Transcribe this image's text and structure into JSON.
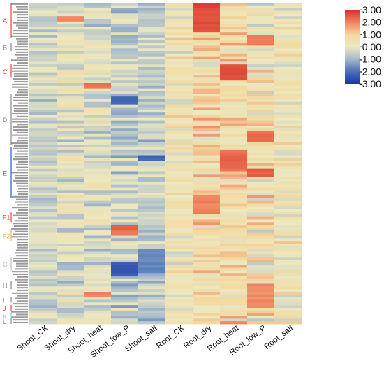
{
  "chart_data": {
    "type": "heatmap",
    "title": "",
    "xlabel": "",
    "ylabel": "",
    "columns": [
      "Shoot_CK",
      "Shoot_dry",
      "Shoot_heat",
      "Shoot_low_P",
      "Shoot_salt",
      "Root_CK",
      "Root_dry",
      "Root_heat",
      "Root_low_P",
      "Root_salt"
    ],
    "row_count": 120,
    "row_labels_legible": false,
    "groups": [
      {
        "label": "A",
        "color": "#e8433a",
        "rows": [
          0,
          12
        ]
      },
      {
        "label": "B",
        "color": "#888888",
        "rows": [
          15,
          17
        ]
      },
      {
        "label": "C",
        "color": "#e8433a",
        "rows": [
          23,
          27
        ]
      },
      {
        "label": "D",
        "color": "#888888",
        "rows": [
          34,
          52
        ]
      },
      {
        "label": "E",
        "color": "#2c58c8",
        "rows": [
          54,
          72
        ]
      },
      {
        "label": "F1",
        "color": "#e8433a",
        "rows": [
          78,
          81
        ]
      },
      {
        "label": "F2",
        "color": "#f0b45a",
        "rows": [
          85,
          88
        ]
      },
      {
        "label": "G",
        "color": "#bbbbbb",
        "rows": [
          95,
          99
        ]
      },
      {
        "label": "H",
        "color": "#888888",
        "rows": [
          104,
          106
        ]
      },
      {
        "label": "I",
        "color": "#888888",
        "rows": [
          110,
          111
        ]
      },
      {
        "label": "J",
        "color": "#e8433a",
        "rows": [
          113,
          114
        ]
      },
      {
        "label": "K",
        "color": "#7ad0d8",
        "rows": [
          116,
          117
        ]
      },
      {
        "label": "L",
        "color": "#888888",
        "rows": [
          118,
          119
        ]
      }
    ],
    "colorbar": {
      "range": [
        -3,
        3
      ],
      "ticks": [
        "3.00",
        "2.00",
        "1.00",
        "0.00",
        "-1.00",
        "-2.00",
        "-3.00"
      ],
      "colors": [
        "#d73027",
        "#f07f5c",
        "#f3d9a0",
        "#ece8c0",
        "#a9bccb",
        "#4b72b5",
        "#1b35a8"
      ]
    },
    "column_profiles": [
      {
        "name": "Shoot_CK",
        "mean": -0.45,
        "spread": 0.55
      },
      {
        "name": "Shoot_dry",
        "mean": -0.2,
        "spread": 0.8
      },
      {
        "name": "Shoot_heat",
        "mean": -0.3,
        "spread": 0.75
      },
      {
        "name": "Shoot_low_P",
        "mean": -0.55,
        "spread": 0.8
      },
      {
        "name": "Shoot_salt",
        "mean": -0.6,
        "spread": 0.6
      },
      {
        "name": "Root_CK",
        "mean": 0.35,
        "spread": 0.7
      },
      {
        "name": "Root_dry",
        "mean": 0.7,
        "spread": 0.9
      },
      {
        "name": "Root_heat",
        "mean": 0.75,
        "spread": 0.9
      },
      {
        "name": "Root_low_P",
        "mean": 0.45,
        "spread": 1.0
      },
      {
        "name": "Root_salt",
        "mean": 0.3,
        "spread": 0.7
      }
    ],
    "highlights": [
      {
        "column": "Root_dry",
        "rows": [
          0,
          10
        ],
        "value": 2.7
      },
      {
        "column": "Root_heat",
        "rows": [
          23,
          28
        ],
        "value": 2.5
      },
      {
        "column": "Root_heat",
        "rows": [
          55,
          62
        ],
        "value": 2.3
      },
      {
        "column": "Root_low_P",
        "rows": [
          12,
          15
        ],
        "value": 2.0
      },
      {
        "column": "Root_low_P",
        "rows": [
          48,
          51
        ],
        "value": 2.2
      },
      {
        "column": "Root_low_P",
        "rows": [
          62,
          64
        ],
        "value": 2.4
      },
      {
        "column": "Root_dry",
        "rows": [
          72,
          78
        ],
        "value": 2.0
      },
      {
        "column": "Shoot_low_P",
        "rows": [
          35,
          37
        ],
        "value": -2.3
      },
      {
        "column": "Shoot_low_P",
        "rows": [
          83,
          86
        ],
        "value": 2.3
      },
      {
        "column": "Shoot_low_P",
        "rows": [
          97,
          101
        ],
        "value": -2.4
      },
      {
        "column": "Shoot_salt",
        "rows": [
          57,
          58
        ],
        "value": -2.2
      },
      {
        "column": "Shoot_salt",
        "rows": [
          92,
          100
        ],
        "value": -1.8
      },
      {
        "column": "Shoot_dry",
        "rows": [
          5,
          6
        ],
        "value": 1.9
      },
      {
        "column": "Shoot_heat",
        "rows": [
          30,
          31
        ],
        "value": 2.3
      },
      {
        "column": "Shoot_heat",
        "rows": [
          108,
          109
        ],
        "value": 2.0
      },
      {
        "column": "Root_low_P",
        "rows": [
          105,
          113
        ],
        "value": 1.9
      }
    ]
  }
}
